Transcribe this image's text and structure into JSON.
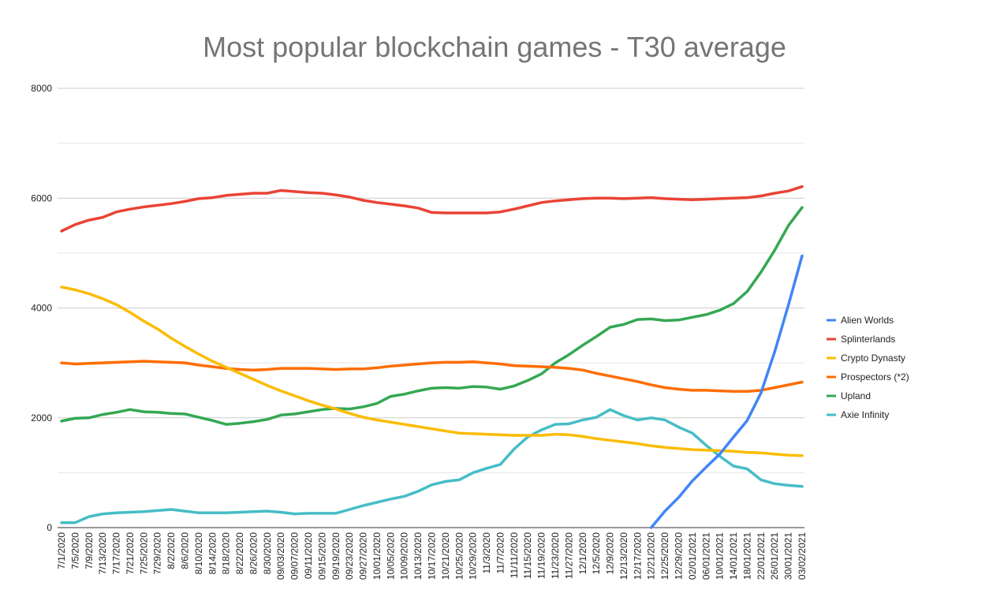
{
  "chart_data": {
    "type": "line",
    "title": "Most popular blockchain games - T30 average",
    "xlabel": "",
    "ylabel": "",
    "ylim": [
      0,
      8000
    ],
    "yticks": [
      0,
      2000,
      4000,
      6000,
      8000
    ],
    "grid": true,
    "legend_position": "right",
    "categories": [
      "7/1/2020",
      "7/5/2020",
      "7/9/2020",
      "7/13/2020",
      "7/17/2020",
      "7/21/2020",
      "7/25/2020",
      "7/29/2020",
      "8/2/2020",
      "8/6/2020",
      "8/10/2020",
      "8/14/2020",
      "8/18/2020",
      "8/22/2020",
      "8/26/2020",
      "8/30/2020",
      "09/03/2020",
      "09/07/2020",
      "09/11/2020",
      "09/15/2020",
      "09/19/2020",
      "09/23/2020",
      "09/27/2020",
      "10/01/2020",
      "10/05/2020",
      "10/09/2020",
      "10/13/2020",
      "10/17/2020",
      "10/21/2020",
      "10/25/2020",
      "10/29/2020",
      "11/3/2020",
      "11/7/2020",
      "11/11/2020",
      "11/15/2020",
      "11/19/2020",
      "11/23/2020",
      "11/27/2020",
      "12/1/2020",
      "12/5/2020",
      "12/9/2020",
      "12/13/2020",
      "12/17/2020",
      "12/21/2020",
      "12/25/2020",
      "12/29/2020",
      "02/01/2021",
      "06/01/2021",
      "10/01/2021",
      "14/01/2021",
      "18/01/2021",
      "22/01/2021",
      "26/01/2021",
      "30/01/2021",
      "03/02/2021"
    ],
    "series": [
      {
        "name": "Alien Worlds",
        "color": "#4285f4",
        "values": [
          null,
          null,
          null,
          null,
          null,
          null,
          null,
          null,
          null,
          null,
          null,
          null,
          null,
          null,
          null,
          null,
          null,
          null,
          null,
          null,
          null,
          null,
          null,
          null,
          null,
          null,
          null,
          null,
          null,
          null,
          null,
          null,
          null,
          null,
          null,
          null,
          null,
          null,
          null,
          null,
          null,
          null,
          null,
          0,
          300,
          550,
          850,
          1100,
          1340,
          1650,
          1950,
          2450,
          3200,
          4050,
          4950
        ]
      },
      {
        "name": "Splinterlands",
        "color": "#ea4335",
        "values": [
          5400,
          5520,
          5600,
          5650,
          5750,
          5800,
          5840,
          5870,
          5900,
          5940,
          5990,
          6010,
          6050,
          6070,
          6090,
          6090,
          6140,
          6120,
          6100,
          6090,
          6060,
          6020,
          5960,
          5920,
          5890,
          5860,
          5820,
          5740,
          5730,
          5730,
          5730,
          5730,
          5750,
          5800,
          5860,
          5920,
          5950,
          5970,
          5990,
          6000,
          6000,
          5990,
          6000,
          6010,
          5990,
          5980,
          5970,
          5980,
          5990,
          6000,
          6010,
          6040,
          6090,
          6130,
          6210
        ]
      },
      {
        "name": "Crypto Dynasty",
        "color": "#fbbc04",
        "values": [
          4380,
          4330,
          4260,
          4170,
          4060,
          3920,
          3760,
          3620,
          3450,
          3300,
          3160,
          3030,
          2920,
          2810,
          2700,
          2590,
          2490,
          2400,
          2310,
          2230,
          2160,
          2080,
          2010,
          1960,
          1920,
          1880,
          1840,
          1800,
          1760,
          1720,
          1710,
          1700,
          1690,
          1680,
          1680,
          1680,
          1700,
          1690,
          1660,
          1620,
          1590,
          1560,
          1530,
          1490,
          1460,
          1440,
          1420,
          1410,
          1400,
          1390,
          1370,
          1360,
          1340,
          1320,
          1310
        ]
      },
      {
        "name": "Prospectors (*2)",
        "color": "#ff6d01",
        "values": [
          3000,
          2980,
          2990,
          3000,
          3010,
          3020,
          3030,
          3020,
          3010,
          3000,
          2960,
          2930,
          2900,
          2880,
          2870,
          2880,
          2900,
          2900,
          2900,
          2890,
          2880,
          2890,
          2890,
          2910,
          2940,
          2960,
          2980,
          3000,
          3010,
          3010,
          3020,
          3000,
          2980,
          2950,
          2940,
          2930,
          2920,
          2900,
          2870,
          2810,
          2760,
          2710,
          2660,
          2600,
          2550,
          2520,
          2500,
          2500,
          2490,
          2480,
          2480,
          2500,
          2550,
          2600,
          2650
        ]
      },
      {
        "name": "Upland",
        "color": "#34a853",
        "values": [
          1940,
          1990,
          2000,
          2060,
          2100,
          2150,
          2110,
          2100,
          2080,
          2070,
          2010,
          1950,
          1880,
          1900,
          1930,
          1970,
          2050,
          2070,
          2110,
          2150,
          2170,
          2160,
          2200,
          2260,
          2390,
          2430,
          2490,
          2540,
          2550,
          2540,
          2570,
          2560,
          2520,
          2580,
          2680,
          2800,
          3000,
          3150,
          3320,
          3480,
          3650,
          3700,
          3790,
          3800,
          3770,
          3780,
          3830,
          3880,
          3960,
          4080,
          4300,
          4650,
          5050,
          5500,
          5830
        ]
      },
      {
        "name": "Axie Infinity",
        "color": "#46bdc6",
        "values": [
          90,
          90,
          200,
          250,
          270,
          280,
          290,
          310,
          330,
          300,
          270,
          270,
          270,
          280,
          290,
          300,
          280,
          250,
          260,
          260,
          260,
          330,
          400,
          460,
          520,
          570,
          660,
          780,
          840,
          870,
          1000,
          1080,
          1150,
          1430,
          1650,
          1780,
          1880,
          1890,
          1960,
          2010,
          2150,
          2040,
          1960,
          2000,
          1960,
          1830,
          1720,
          1500,
          1300,
          1120,
          1070,
          870,
          800,
          770,
          750
        ]
      }
    ]
  }
}
